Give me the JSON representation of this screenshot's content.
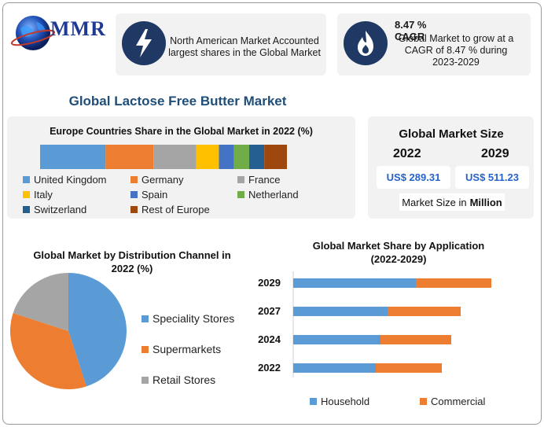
{
  "brand": {
    "logo_text": "MMR"
  },
  "header": {
    "card1_text": "North American Market Accounted largest shares in the Global Market",
    "card2_title": "8.47 % CAGR",
    "card2_text": "Global Market to grow at a CAGR of 8.47 % during 2023-2029"
  },
  "main_title": "Global Lactose Free Butter Market",
  "market_size": {
    "title": "Global Market Size",
    "year1": "2022",
    "year2": "2029",
    "value1": "US$ 289.31",
    "value2": "US$ 511.23",
    "unit_label": "Market Size in",
    "unit_bold": "Million"
  },
  "colors": {
    "blue": "#5b9bd5",
    "orange": "#ed7d31",
    "gray": "#a5a5a5",
    "yellow": "#ffc000",
    "royal": "#4472c4",
    "green": "#70ad47",
    "navy": "#255e91",
    "brown": "#9e480e",
    "dark_navy": "#1f3864"
  },
  "icons": [
    "globe-icon",
    "lightning-icon",
    "flame-icon"
  ],
  "chart_data": [
    {
      "type": "bar",
      "stacked": true,
      "orientation": "horizontal",
      "title": "Europe Countries Share in the Global Market in 2022 (%)",
      "series": [
        {
          "name": "United Kingdom",
          "values": [
            26
          ],
          "color": "#5b9bd5"
        },
        {
          "name": "Germany",
          "values": [
            19
          ],
          "color": "#ed7d31"
        },
        {
          "name": "France",
          "values": [
            17
          ],
          "color": "#a5a5a5"
        },
        {
          "name": "Italy",
          "values": [
            9
          ],
          "color": "#ffc000"
        },
        {
          "name": "Spain",
          "values": [
            6
          ],
          "color": "#4472c4"
        },
        {
          "name": "Netherland",
          "values": [
            6
          ],
          "color": "#70ad47"
        },
        {
          "name": "Switzerland",
          "values": [
            6
          ],
          "color": "#255e91"
        },
        {
          "name": "Rest of Europe",
          "values": [
            9
          ],
          "color": "#9e480e"
        }
      ],
      "legend": "bottom"
    },
    {
      "type": "pie",
      "title": "Global Market by Distribution Channel in 2022 (%)",
      "labels": [
        "Speciality Stores",
        "Supermarkets",
        "Retail Stores"
      ],
      "values": [
        45,
        35,
        20
      ],
      "colors": [
        "#5b9bd5",
        "#ed7d31",
        "#a5a5a5"
      ],
      "legend": "right"
    },
    {
      "type": "bar",
      "stacked": true,
      "orientation": "horizontal",
      "title": "Global Market Share by Application (2022-2029)",
      "categories": [
        "2029",
        "2027",
        "2024",
        "2022"
      ],
      "series": [
        {
          "name": "Household",
          "values": [
            52,
            40,
            37,
            35
          ],
          "color": "#5b9bd5"
        },
        {
          "name": "Commercial",
          "values": [
            32,
            31,
            30,
            28
          ],
          "color": "#ed7d31"
        }
      ],
      "xlim": [
        0,
        100
      ],
      "legend": "bottom"
    }
  ]
}
